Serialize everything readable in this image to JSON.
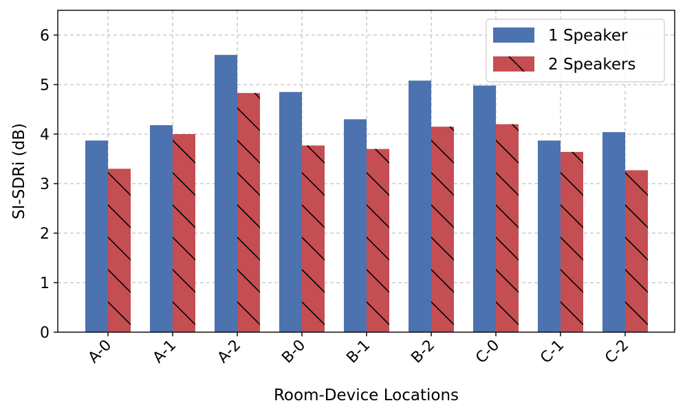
{
  "chart_data": {
    "type": "bar",
    "title": "",
    "xlabel": "Room-Device Locations",
    "ylabel": "SI-SDRi (dB)",
    "ylim": [
      0,
      6.5
    ],
    "yticks": [
      0,
      1,
      2,
      3,
      4,
      5,
      6
    ],
    "grid": true,
    "legend_position": "top-right",
    "categories": [
      "A-0",
      "A-1",
      "A-2",
      "B-0",
      "B-1",
      "B-2",
      "C-0",
      "C-1",
      "C-2"
    ],
    "series": [
      {
        "name": "1 Speaker",
        "color": "#4c72b0",
        "hatch": "none",
        "values": [
          3.87,
          4.18,
          5.6,
          4.85,
          4.3,
          5.08,
          4.98,
          3.87,
          4.04
        ]
      },
      {
        "name": "2 Speakers",
        "color": "#c44e52",
        "hatch": "backslash",
        "values": [
          3.3,
          4.0,
          4.83,
          3.77,
          3.7,
          4.15,
          4.2,
          3.64,
          3.27
        ]
      }
    ]
  }
}
